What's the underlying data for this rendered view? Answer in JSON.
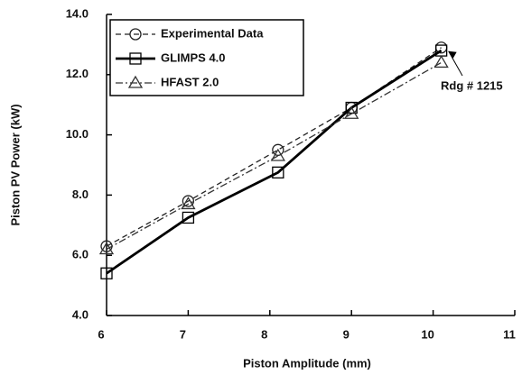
{
  "chart_data": {
    "type": "line",
    "x_label": "Piston Amplitude (mm)",
    "y_label": "Piston PV Power (kW)",
    "annotation": "Rdg # 1215",
    "x": [
      6,
      7,
      8.1,
      9,
      10.1
    ],
    "series": [
      {
        "name": "Experimental Data",
        "color": "#222",
        "dash": "6,4",
        "marker": "circle",
        "values": [
          6.3,
          7.8,
          9.5,
          10.9,
          12.9
        ]
      },
      {
        "name": "GLIMPS 4.0",
        "color": "#000",
        "dash": "none",
        "marker": "square",
        "values": [
          5.4,
          7.25,
          8.75,
          10.9,
          12.8
        ]
      },
      {
        "name": "HFAST 2.0",
        "color": "#333",
        "dash": "8,3,2,3",
        "marker": "triangle",
        "values": [
          6.2,
          7.7,
          9.3,
          10.7,
          12.4
        ]
      }
    ],
    "xlim": [
      6,
      11
    ],
    "xticks": [
      6,
      7,
      8,
      9,
      10,
      11
    ],
    "ylim": [
      4,
      14
    ],
    "yticks": [
      {
        "value": 4,
        "label": "4.0"
      },
      {
        "value": 6,
        "label": "6.0"
      },
      {
        "value": 8,
        "label": "8.0"
      },
      {
        "value": 10,
        "label": "10.0"
      },
      {
        "value": 12,
        "label": "12.0"
      },
      {
        "value": 14,
        "label": "14.0"
      }
    ]
  }
}
